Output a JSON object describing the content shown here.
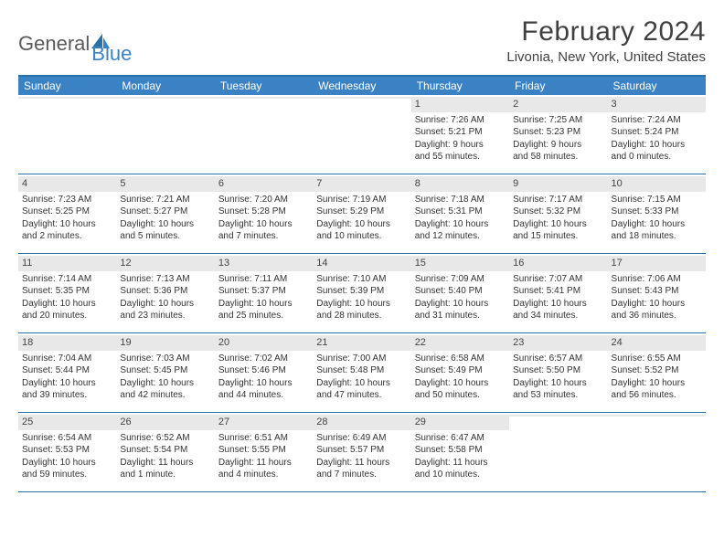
{
  "logo": {
    "part1": "General",
    "part2": "Blue"
  },
  "title": "February 2024",
  "location": "Livonia, New York, United States",
  "colors": {
    "header_bg": "#3b82c4",
    "header_border": "#2a6fa8",
    "daynum_bg": "#e8e8e8",
    "text": "#333333",
    "logo_gray": "#5a5a5a",
    "logo_blue": "#3b82c4"
  },
  "day_headers": [
    "Sunday",
    "Monday",
    "Tuesday",
    "Wednesday",
    "Thursday",
    "Friday",
    "Saturday"
  ],
  "weeks": [
    [
      {
        "empty": true
      },
      {
        "empty": true
      },
      {
        "empty": true
      },
      {
        "empty": true
      },
      {
        "day": "1",
        "sunrise": "Sunrise: 7:26 AM",
        "sunset": "Sunset: 5:21 PM",
        "daylight1": "Daylight: 9 hours",
        "daylight2": "and 55 minutes."
      },
      {
        "day": "2",
        "sunrise": "Sunrise: 7:25 AM",
        "sunset": "Sunset: 5:23 PM",
        "daylight1": "Daylight: 9 hours",
        "daylight2": "and 58 minutes."
      },
      {
        "day": "3",
        "sunrise": "Sunrise: 7:24 AM",
        "sunset": "Sunset: 5:24 PM",
        "daylight1": "Daylight: 10 hours",
        "daylight2": "and 0 minutes."
      }
    ],
    [
      {
        "day": "4",
        "sunrise": "Sunrise: 7:23 AM",
        "sunset": "Sunset: 5:25 PM",
        "daylight1": "Daylight: 10 hours",
        "daylight2": "and 2 minutes."
      },
      {
        "day": "5",
        "sunrise": "Sunrise: 7:21 AM",
        "sunset": "Sunset: 5:27 PM",
        "daylight1": "Daylight: 10 hours",
        "daylight2": "and 5 minutes."
      },
      {
        "day": "6",
        "sunrise": "Sunrise: 7:20 AM",
        "sunset": "Sunset: 5:28 PM",
        "daylight1": "Daylight: 10 hours",
        "daylight2": "and 7 minutes."
      },
      {
        "day": "7",
        "sunrise": "Sunrise: 7:19 AM",
        "sunset": "Sunset: 5:29 PM",
        "daylight1": "Daylight: 10 hours",
        "daylight2": "and 10 minutes."
      },
      {
        "day": "8",
        "sunrise": "Sunrise: 7:18 AM",
        "sunset": "Sunset: 5:31 PM",
        "daylight1": "Daylight: 10 hours",
        "daylight2": "and 12 minutes."
      },
      {
        "day": "9",
        "sunrise": "Sunrise: 7:17 AM",
        "sunset": "Sunset: 5:32 PM",
        "daylight1": "Daylight: 10 hours",
        "daylight2": "and 15 minutes."
      },
      {
        "day": "10",
        "sunrise": "Sunrise: 7:15 AM",
        "sunset": "Sunset: 5:33 PM",
        "daylight1": "Daylight: 10 hours",
        "daylight2": "and 18 minutes."
      }
    ],
    [
      {
        "day": "11",
        "sunrise": "Sunrise: 7:14 AM",
        "sunset": "Sunset: 5:35 PM",
        "daylight1": "Daylight: 10 hours",
        "daylight2": "and 20 minutes."
      },
      {
        "day": "12",
        "sunrise": "Sunrise: 7:13 AM",
        "sunset": "Sunset: 5:36 PM",
        "daylight1": "Daylight: 10 hours",
        "daylight2": "and 23 minutes."
      },
      {
        "day": "13",
        "sunrise": "Sunrise: 7:11 AM",
        "sunset": "Sunset: 5:37 PM",
        "daylight1": "Daylight: 10 hours",
        "daylight2": "and 25 minutes."
      },
      {
        "day": "14",
        "sunrise": "Sunrise: 7:10 AM",
        "sunset": "Sunset: 5:39 PM",
        "daylight1": "Daylight: 10 hours",
        "daylight2": "and 28 minutes."
      },
      {
        "day": "15",
        "sunrise": "Sunrise: 7:09 AM",
        "sunset": "Sunset: 5:40 PM",
        "daylight1": "Daylight: 10 hours",
        "daylight2": "and 31 minutes."
      },
      {
        "day": "16",
        "sunrise": "Sunrise: 7:07 AM",
        "sunset": "Sunset: 5:41 PM",
        "daylight1": "Daylight: 10 hours",
        "daylight2": "and 34 minutes."
      },
      {
        "day": "17",
        "sunrise": "Sunrise: 7:06 AM",
        "sunset": "Sunset: 5:43 PM",
        "daylight1": "Daylight: 10 hours",
        "daylight2": "and 36 minutes."
      }
    ],
    [
      {
        "day": "18",
        "sunrise": "Sunrise: 7:04 AM",
        "sunset": "Sunset: 5:44 PM",
        "daylight1": "Daylight: 10 hours",
        "daylight2": "and 39 minutes."
      },
      {
        "day": "19",
        "sunrise": "Sunrise: 7:03 AM",
        "sunset": "Sunset: 5:45 PM",
        "daylight1": "Daylight: 10 hours",
        "daylight2": "and 42 minutes."
      },
      {
        "day": "20",
        "sunrise": "Sunrise: 7:02 AM",
        "sunset": "Sunset: 5:46 PM",
        "daylight1": "Daylight: 10 hours",
        "daylight2": "and 44 minutes."
      },
      {
        "day": "21",
        "sunrise": "Sunrise: 7:00 AM",
        "sunset": "Sunset: 5:48 PM",
        "daylight1": "Daylight: 10 hours",
        "daylight2": "and 47 minutes."
      },
      {
        "day": "22",
        "sunrise": "Sunrise: 6:58 AM",
        "sunset": "Sunset: 5:49 PM",
        "daylight1": "Daylight: 10 hours",
        "daylight2": "and 50 minutes."
      },
      {
        "day": "23",
        "sunrise": "Sunrise: 6:57 AM",
        "sunset": "Sunset: 5:50 PM",
        "daylight1": "Daylight: 10 hours",
        "daylight2": "and 53 minutes."
      },
      {
        "day": "24",
        "sunrise": "Sunrise: 6:55 AM",
        "sunset": "Sunset: 5:52 PM",
        "daylight1": "Daylight: 10 hours",
        "daylight2": "and 56 minutes."
      }
    ],
    [
      {
        "day": "25",
        "sunrise": "Sunrise: 6:54 AM",
        "sunset": "Sunset: 5:53 PM",
        "daylight1": "Daylight: 10 hours",
        "daylight2": "and 59 minutes."
      },
      {
        "day": "26",
        "sunrise": "Sunrise: 6:52 AM",
        "sunset": "Sunset: 5:54 PM",
        "daylight1": "Daylight: 11 hours",
        "daylight2": "and 1 minute."
      },
      {
        "day": "27",
        "sunrise": "Sunrise: 6:51 AM",
        "sunset": "Sunset: 5:55 PM",
        "daylight1": "Daylight: 11 hours",
        "daylight2": "and 4 minutes."
      },
      {
        "day": "28",
        "sunrise": "Sunrise: 6:49 AM",
        "sunset": "Sunset: 5:57 PM",
        "daylight1": "Daylight: 11 hours",
        "daylight2": "and 7 minutes."
      },
      {
        "day": "29",
        "sunrise": "Sunrise: 6:47 AM",
        "sunset": "Sunset: 5:58 PM",
        "daylight1": "Daylight: 11 hours",
        "daylight2": "and 10 minutes."
      },
      {
        "empty": true
      },
      {
        "empty": true
      }
    ]
  ]
}
